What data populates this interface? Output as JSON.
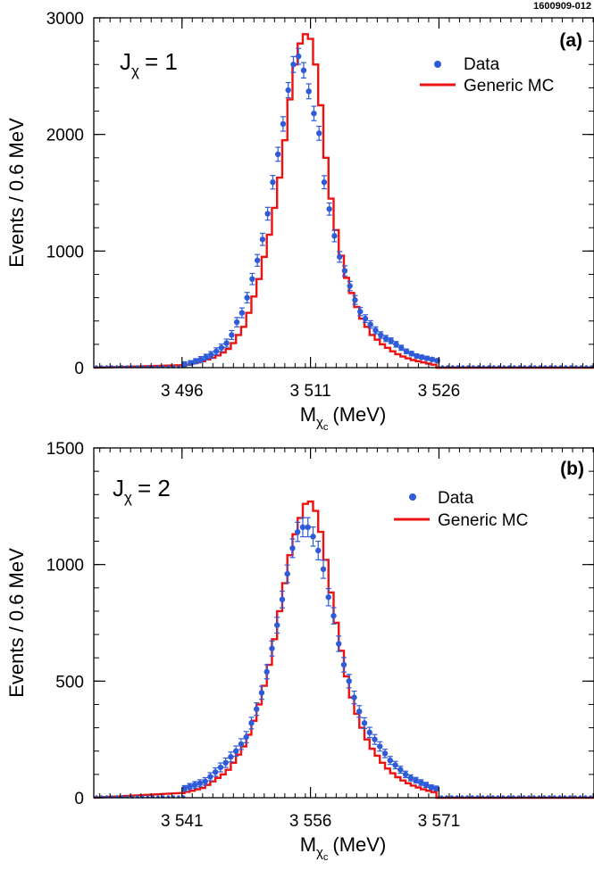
{
  "figure_id": "1600909-012",
  "chart_data": [
    {
      "type": "scatter",
      "panel_label": "(a)",
      "j_label": "J",
      "j_sub": "χ",
      "j_value": "= 1",
      "xlabel": "M",
      "xlabel_sub": "χ",
      "xlabel_subsub": "c",
      "xlabel_unit": "(MeV)",
      "ylabel": "Events / 0.6 MeV",
      "xlim": [
        3485.7,
        3544.1
      ],
      "ylim": [
        0,
        3000
      ],
      "xticks": [
        3496,
        3511,
        3526
      ],
      "xtick_labels": [
        "3 496",
        "3 511",
        "3 526"
      ],
      "yticks": [
        0,
        1000,
        2000,
        3000
      ],
      "ytick_labels": [
        "0",
        "1000",
        "2000",
        "3000"
      ],
      "legend": {
        "position": "top-right",
        "data_label": "Data",
        "mc_label": "Generic MC"
      },
      "data_color": "#2e5bd8",
      "mc_color": "#ee1111",
      "series": [
        {
          "name": "Data",
          "x": [
            3496.3,
            3497.0,
            3497.6,
            3498.2,
            3498.8,
            3499.4,
            3500.0,
            3500.6,
            3501.2,
            3501.8,
            3502.4,
            3503.0,
            3503.6,
            3504.2,
            3504.8,
            3505.4,
            3506.0,
            3506.6,
            3507.2,
            3507.8,
            3508.4,
            3509.0,
            3509.6,
            3510.2,
            3510.8,
            3511.4,
            3512.0,
            3512.6,
            3513.2,
            3513.8,
            3514.4,
            3515.0,
            3515.6,
            3516.2,
            3516.8,
            3517.4,
            3518.0,
            3518.6,
            3519.2,
            3519.8,
            3520.4,
            3521.0,
            3521.6,
            3522.2,
            3522.8,
            3523.4,
            3524.0,
            3524.6,
            3525.2,
            3525.8
          ],
          "y": [
            30,
            40,
            55,
            70,
            90,
            110,
            140,
            170,
            210,
            280,
            390,
            470,
            600,
            760,
            920,
            1100,
            1320,
            1590,
            1830,
            2090,
            2380,
            2600,
            2670,
            2550,
            2370,
            2180,
            2010,
            1590,
            1360,
            1130,
            950,
            830,
            700,
            580,
            480,
            420,
            370,
            320,
            280,
            250,
            230,
            200,
            170,
            140,
            120,
            100,
            90,
            80,
            70,
            60
          ],
          "err": [
            20,
            20,
            22,
            25,
            25,
            28,
            30,
            32,
            35,
            38,
            40,
            42,
            45,
            48,
            50,
            52,
            55,
            58,
            60,
            62,
            65,
            68,
            68,
            66,
            64,
            62,
            60,
            56,
            52,
            50,
            46,
            44,
            40,
            38,
            35,
            33,
            32,
            30,
            28,
            26,
            25,
            24,
            22,
            20,
            19,
            18,
            17,
            16,
            15,
            15
          ]
        },
        {
          "name": "Generic MC",
          "x": [
            3496.0,
            3496.6,
            3497.2,
            3497.8,
            3498.4,
            3499.0,
            3499.6,
            3500.2,
            3500.8,
            3501.4,
            3502.0,
            3502.6,
            3503.2,
            3503.8,
            3504.4,
            3505.0,
            3505.6,
            3506.2,
            3506.8,
            3507.4,
            3508.0,
            3508.6,
            3509.2,
            3509.8,
            3510.4,
            3511.0,
            3511.6,
            3512.2,
            3512.8,
            3513.4,
            3514.0,
            3514.6,
            3515.2,
            3515.8,
            3516.4,
            3517.0,
            3517.6,
            3518.2,
            3518.8,
            3519.4,
            3520.0,
            3520.6,
            3521.2,
            3521.8,
            3522.4,
            3523.0,
            3523.6,
            3524.2,
            3524.8,
            3525.4,
            3526.0
          ],
          "y": [
            20,
            25,
            35,
            45,
            55,
            70,
            85,
            105,
            130,
            160,
            210,
            280,
            350,
            470,
            610,
            760,
            950,
            1140,
            1370,
            1630,
            1950,
            2300,
            2600,
            2780,
            2860,
            2820,
            2600,
            2250,
            1800,
            1450,
            1180,
            960,
            770,
            640,
            520,
            420,
            350,
            280,
            240,
            200,
            170,
            140,
            115,
            95,
            80,
            65,
            55,
            45,
            35,
            25,
            0
          ]
        }
      ]
    },
    {
      "type": "scatter",
      "panel_label": "(b)",
      "j_label": "J",
      "j_sub": "χ",
      "j_value": "= 2",
      "xlabel": "M",
      "xlabel_sub": "χ",
      "xlabel_subsub": "c",
      "xlabel_unit": "(MeV)",
      "ylabel": "Events / 0.6 MeV",
      "xlim": [
        3530.7,
        3589.1
      ],
      "ylim": [
        0,
        1500
      ],
      "xticks": [
        3541,
        3556,
        3571
      ],
      "xtick_labels": [
        "3 541",
        "3 556",
        "3 571"
      ],
      "yticks": [
        0,
        500,
        1000,
        1500
      ],
      "ytick_labels": [
        "0",
        "500",
        "1000",
        "1500"
      ],
      "legend": {
        "position": "top-right",
        "data_label": "Data",
        "mc_label": "Generic MC"
      },
      "data_color": "#2e5bd8",
      "mc_color": "#ee1111",
      "series": [
        {
          "name": "Data",
          "x": [
            3541.3,
            3541.9,
            3542.5,
            3543.1,
            3543.7,
            3544.3,
            3544.9,
            3545.5,
            3546.1,
            3546.7,
            3547.3,
            3547.9,
            3548.5,
            3549.1,
            3549.7,
            3550.3,
            3550.9,
            3551.5,
            3552.1,
            3552.7,
            3553.3,
            3553.9,
            3554.5,
            3555.1,
            3555.7,
            3556.3,
            3556.9,
            3557.5,
            3558.1,
            3558.7,
            3559.3,
            3559.9,
            3560.5,
            3561.1,
            3561.7,
            3562.3,
            3562.9,
            3563.5,
            3564.1,
            3564.7,
            3565.3,
            3565.9,
            3566.5,
            3567.1,
            3567.7,
            3568.3,
            3568.9,
            3569.5,
            3570.1,
            3570.7
          ],
          "y": [
            40,
            48,
            55,
            62,
            70,
            90,
            110,
            130,
            150,
            175,
            200,
            230,
            260,
            320,
            380,
            450,
            540,
            640,
            740,
            850,
            960,
            1070,
            1140,
            1160,
            1160,
            1120,
            1060,
            980,
            860,
            780,
            660,
            570,
            500,
            430,
            370,
            320,
            280,
            250,
            220,
            190,
            160,
            140,
            120,
            100,
            85,
            75,
            65,
            55,
            45,
            40
          ],
          "err": [
            12,
            13,
            14,
            15,
            16,
            17,
            18,
            19,
            20,
            21,
            22,
            23,
            24,
            25,
            27,
            28,
            30,
            32,
            34,
            36,
            38,
            40,
            41,
            41,
            41,
            41,
            40,
            39,
            37,
            35,
            33,
            31,
            29,
            27,
            25,
            23,
            22,
            21,
            20,
            18,
            17,
            16,
            15,
            14,
            13,
            12,
            12,
            11,
            10,
            10
          ]
        },
        {
          "name": "Generic MC",
          "x": [
            3541.0,
            3541.6,
            3542.2,
            3542.8,
            3543.4,
            3544.0,
            3544.6,
            3545.2,
            3545.8,
            3546.4,
            3547.0,
            3547.6,
            3548.2,
            3548.8,
            3549.4,
            3550.0,
            3550.6,
            3551.2,
            3551.8,
            3552.4,
            3553.0,
            3553.6,
            3554.2,
            3554.8,
            3555.4,
            3556.0,
            3556.6,
            3557.2,
            3557.8,
            3558.4,
            3559.0,
            3559.6,
            3560.2,
            3560.8,
            3561.4,
            3562.0,
            3562.6,
            3563.2,
            3563.8,
            3564.4,
            3565.0,
            3565.6,
            3566.2,
            3566.8,
            3567.4,
            3568.0,
            3568.6,
            3569.2,
            3569.8,
            3570.4,
            3571.0
          ],
          "y": [
            20,
            25,
            30,
            36,
            42,
            55,
            70,
            85,
            100,
            120,
            150,
            185,
            220,
            270,
            330,
            400,
            480,
            570,
            680,
            800,
            920,
            1040,
            1130,
            1200,
            1260,
            1270,
            1230,
            1140,
            1020,
            880,
            750,
            630,
            520,
            430,
            360,
            300,
            250,
            210,
            180,
            150,
            125,
            105,
            88,
            74,
            62,
            52,
            44,
            36,
            30,
            24,
            0
          ]
        }
      ]
    }
  ]
}
